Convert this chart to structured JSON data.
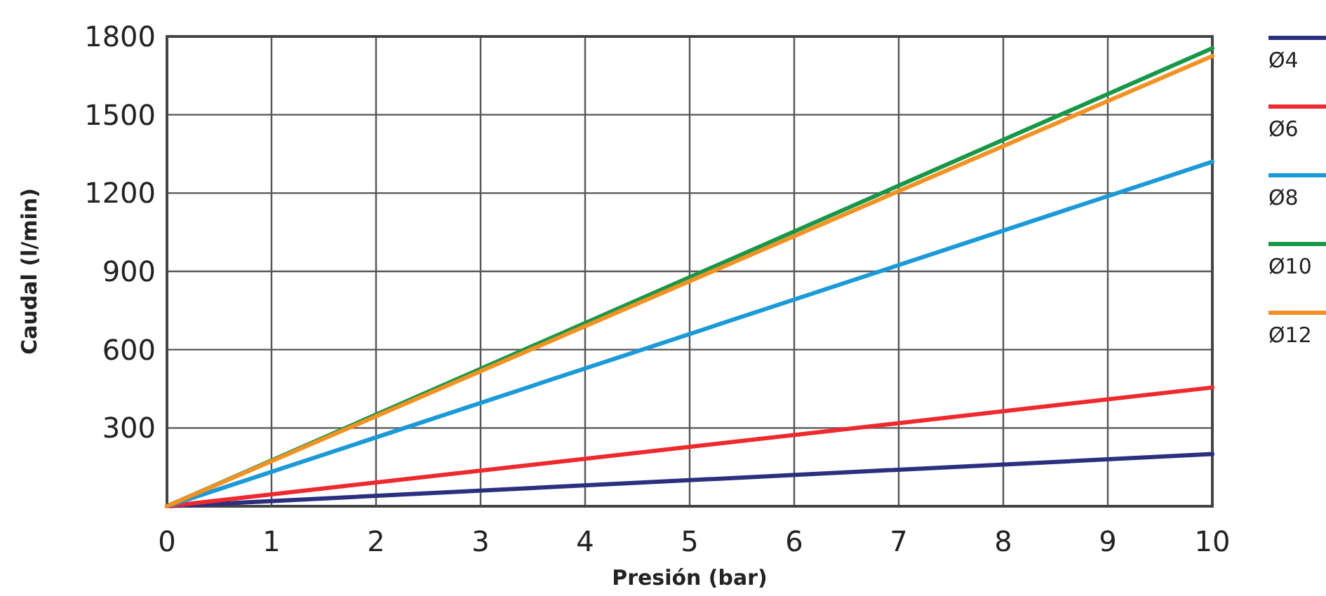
{
  "chart_data": {
    "type": "line",
    "xlabel": "Presión (bar)",
    "ylabel": "Caudal (l/min)",
    "x": [
      0,
      10
    ],
    "series": [
      {
        "name": "Ø4",
        "color": "#2b2f7f",
        "values": [
          0,
          200
        ]
      },
      {
        "name": "Ø6",
        "color": "#ee2a2e",
        "values": [
          0,
          455
        ]
      },
      {
        "name": "Ø8",
        "color": "#1b9ad8",
        "values": [
          0,
          1320
        ]
      },
      {
        "name": "Ø10",
        "color": "#179848",
        "values": [
          0,
          1755
        ]
      },
      {
        "name": "Ø12",
        "color": "#f39223",
        "values": [
          0,
          1725
        ]
      }
    ],
    "xlim": [
      0,
      10
    ],
    "xticks": [
      0,
      1,
      2,
      3,
      4,
      5,
      6,
      7,
      8,
      9,
      10
    ],
    "ylim": [
      0,
      1800
    ],
    "yticks": [
      300,
      600,
      900,
      1200,
      1500,
      1800
    ],
    "grid": true,
    "legend": "right",
    "marker": "none",
    "line_style": "solid"
  }
}
